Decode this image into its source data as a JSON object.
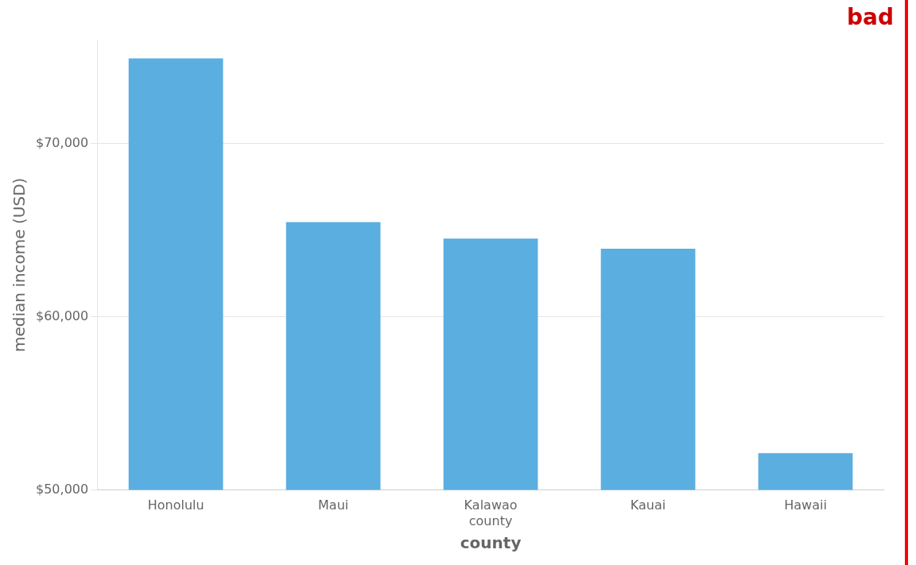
{
  "chart_data": {
    "type": "bar",
    "categories": [
      "Honolulu",
      "Maui",
      "Kalawao\ncounty",
      "Kauai",
      "Hawaii"
    ],
    "values": [
      74923,
      65474,
      64516,
      63927,
      52132
    ],
    "color": "#5BAEE0",
    "xlabel": "county",
    "ylabel": "median income (USD)",
    "ylim": [
      50000,
      76000
    ],
    "yticks": [
      {
        "value": 50000,
        "label": "$50,000"
      },
      {
        "value": 60000,
        "label": "$60,000"
      },
      {
        "value": 70000,
        "label": "$70,000"
      }
    ],
    "grid": true,
    "annotations": [
      {
        "text": "bad",
        "color": "#CC0000"
      }
    ]
  }
}
